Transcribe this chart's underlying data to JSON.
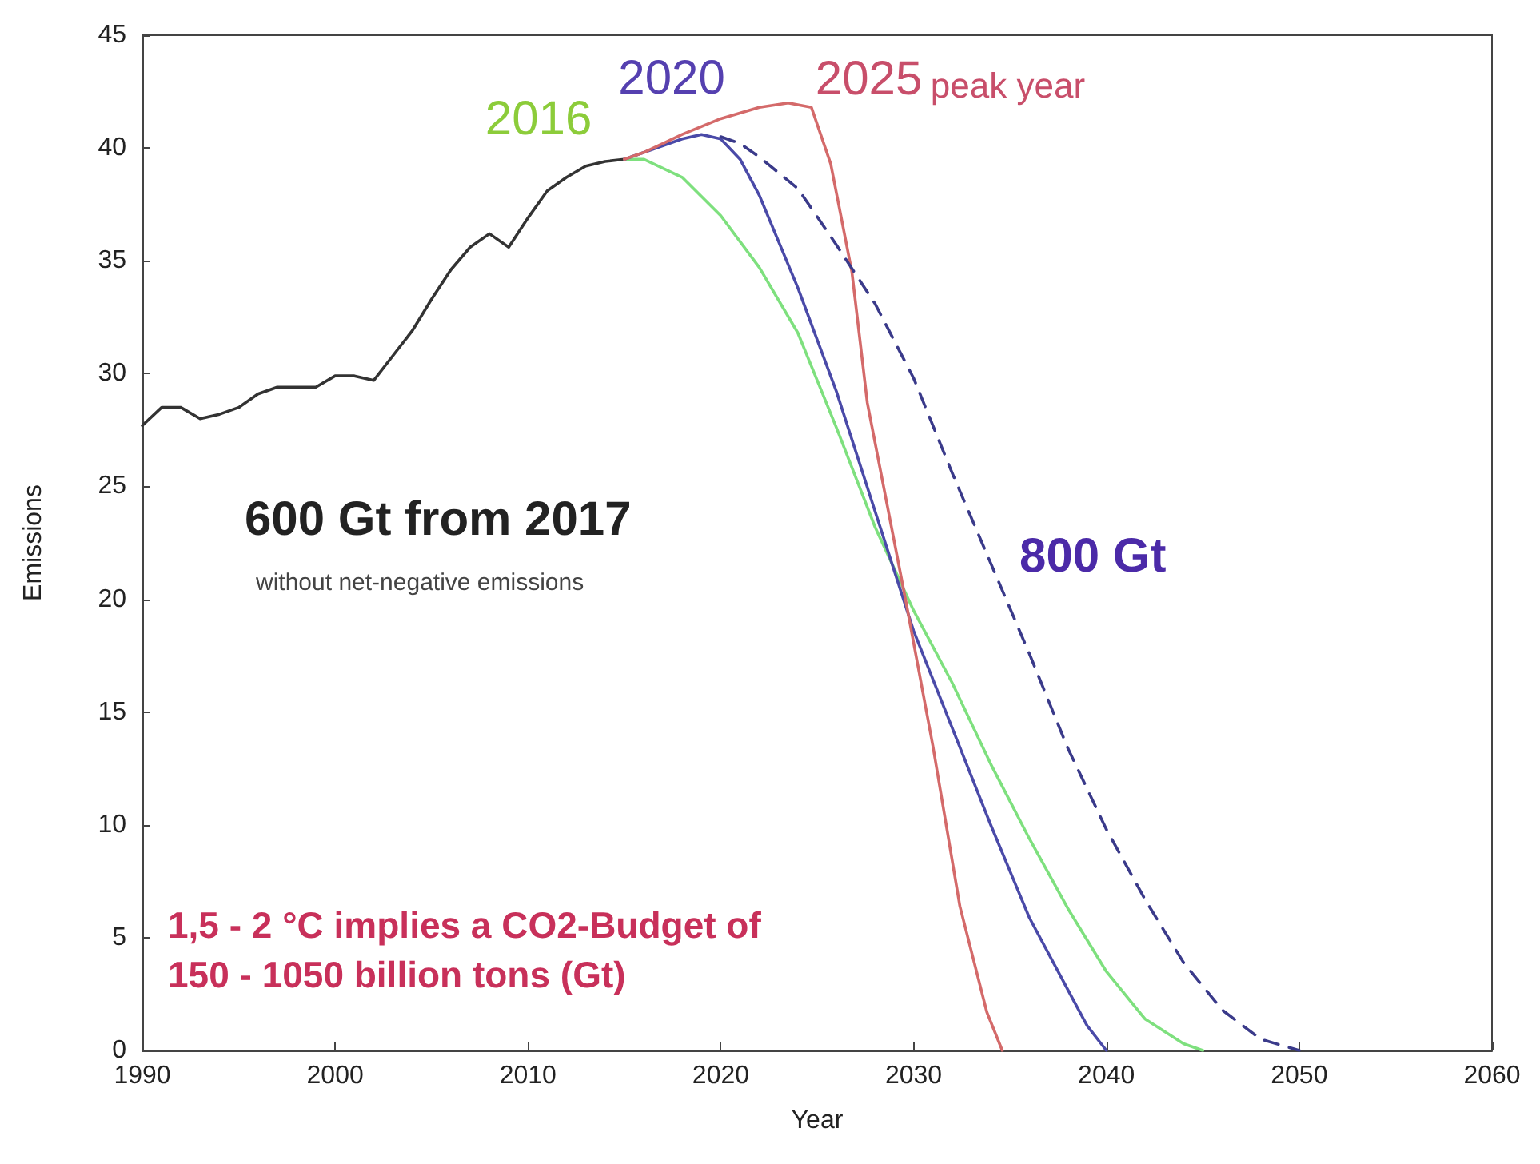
{
  "chart_data": {
    "type": "line",
    "xlabel": "Year",
    "ylabel": "Emissions",
    "xlim": [
      1990,
      2060
    ],
    "xticks": [
      1990,
      2000,
      2010,
      2020,
      2030,
      2040,
      2050,
      2060
    ],
    "ylim": [
      0,
      45
    ],
    "yticks": [
      0,
      5,
      10,
      15,
      20,
      25,
      30,
      35,
      40,
      45
    ],
    "grid": false,
    "marker": "none",
    "line_style": "solid",
    "annotations": [
      "peak year",
      "600 Gt from 2017",
      "without net-negative emissions",
      "1,5 - 2 °C implies a CO2-Budget of 150 - 1050 billion tons (Gt)"
    ],
    "series": [
      {
        "color": "#333333",
        "x": [
          1990,
          1991,
          1992,
          1993,
          1994,
          1995,
          1996,
          1997,
          1998,
          1999,
          2000,
          2001,
          2002,
          2003,
          2004,
          2005,
          2006,
          2007,
          2008,
          2009,
          2010,
          2011,
          2012,
          2013,
          2014,
          2015
        ],
        "values": [
          27.7,
          28.5,
          28.5,
          28.0,
          28.2,
          28.5,
          29.1,
          29.4,
          29.4,
          29.4,
          29.9,
          29.9,
          29.7,
          30.8,
          31.9,
          33.3,
          34.6,
          35.6,
          36.2,
          35.6,
          36.9,
          38.1,
          38.7,
          39.2,
          39.4,
          39.5
        ]
      },
      {
        "name": "2016",
        "color": "#7ee07e",
        "x": [
          2015,
          2016,
          2018,
          2020,
          2022,
          2024,
          2026,
          2028,
          2030,
          2032,
          2034,
          2036,
          2038,
          2040,
          2042,
          2044,
          2045
        ],
        "values": [
          39.5,
          39.5,
          38.7,
          37.0,
          34.7,
          31.8,
          27.6,
          23.2,
          19.5,
          16.3,
          12.7,
          9.4,
          6.3,
          3.5,
          1.4,
          0.3,
          0
        ]
      },
      {
        "name": "2020",
        "color": "#4a4aa8",
        "x": [
          2015,
          2016,
          2018,
          2019,
          2020,
          2021,
          2022,
          2024,
          2026,
          2028,
          2030,
          2032,
          2034,
          2036,
          2038,
          2039,
          2040
        ],
        "values": [
          39.5,
          39.8,
          40.4,
          40.6,
          40.4,
          39.5,
          37.9,
          33.8,
          29.2,
          23.9,
          18.6,
          14.3,
          10.0,
          5.9,
          2.7,
          1.1,
          0
        ]
      },
      {
        "name": "2025",
        "color": "#d46a6a",
        "x": [
          2015,
          2016,
          2018,
          2020,
          2022,
          2023.5,
          2024.7,
          2025.7,
          2026.8,
          2027.6,
          2029.6,
          2031,
          2032.4,
          2033.8,
          2034.6
        ],
        "values": [
          39.5,
          39.8,
          40.6,
          41.3,
          41.8,
          42.0,
          41.8,
          39.3,
          34.5,
          28.7,
          19.9,
          13.5,
          6.4,
          1.7,
          0
        ]
      },
      {
        "name": "800 Gt",
        "color": "#3a3a8a",
        "line_style": "dashed",
        "x": [
          2020,
          2021,
          2022,
          2024,
          2026,
          2028,
          2030,
          2032,
          2034,
          2036,
          2038,
          2040,
          2042,
          2044,
          2046,
          2048,
          2050
        ],
        "values": [
          40.5,
          40.2,
          39.6,
          38.2,
          35.7,
          33.1,
          29.8,
          25.6,
          21.6,
          17.6,
          13.4,
          9.8,
          6.7,
          3.9,
          1.8,
          0.5,
          0
        ]
      }
    ]
  }
}
